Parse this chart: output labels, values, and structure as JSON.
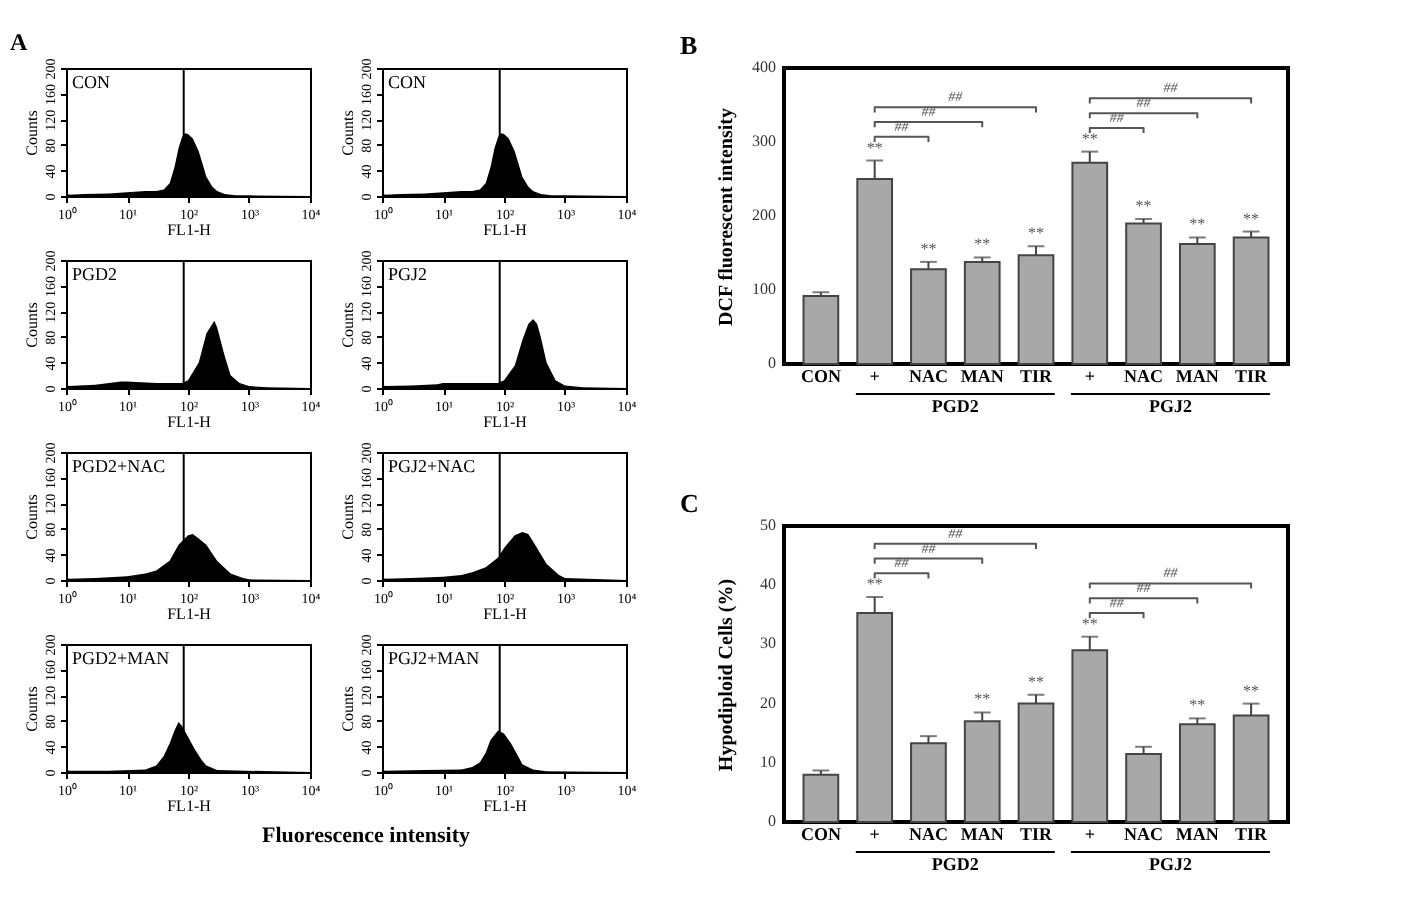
{
  "chart_data": [
    {
      "type": "area",
      "title": "CON",
      "xlabel": "FL1-H",
      "ylabel": "Counts",
      "log": "x",
      "color": "#000000",
      "annotations": [
        "A",
        "Fluorescence intensity"
      ],
      "xlim": [
        1,
        10000
      ],
      "xticks": [
        {
          "value": 1,
          "label": "10⁰"
        },
        {
          "value": 10,
          "label": "10¹"
        },
        {
          "value": 100,
          "label": "10²"
        },
        {
          "value": 1000,
          "label": "10³"
        },
        {
          "value": 10000,
          "label": "10⁴"
        }
      ],
      "ylim": [
        0,
        200
      ],
      "yticks": [
        0,
        40,
        80,
        120,
        160,
        200
      ],
      "ref_lines": [
        {
          "axis": "x",
          "value": 85
        }
      ],
      "x": [
        1,
        1.1,
        2,
        5,
        10,
        20,
        30,
        40,
        50,
        60,
        70,
        80,
        90,
        100,
        120,
        150,
        180,
        200,
        250,
        300,
        400,
        600,
        1000,
        10000
      ],
      "values": [
        15,
        2,
        3,
        4,
        6,
        8,
        8,
        10,
        20,
        45,
        75,
        92,
        98,
        97,
        90,
        70,
        45,
        30,
        15,
        8,
        3,
        1,
        1,
        0
      ]
    },
    {
      "type": "area",
      "title": "CON",
      "xlabel": "FL1-H",
      "ylabel": "Counts",
      "log": "x",
      "color": "#000000",
      "xlim": [
        1,
        10000
      ],
      "xticks": [
        {
          "value": 1,
          "label": "10⁰"
        },
        {
          "value": 10,
          "label": "10¹"
        },
        {
          "value": 100,
          "label": "10²"
        },
        {
          "value": 1000,
          "label": "10³"
        },
        {
          "value": 10000,
          "label": "10⁴"
        }
      ],
      "ylim": [
        0,
        200
      ],
      "yticks": [
        0,
        40,
        80,
        120,
        160,
        200
      ],
      "ref_lines": [
        {
          "axis": "x",
          "value": 85
        }
      ],
      "x": [
        1,
        1.1,
        2,
        5,
        10,
        20,
        30,
        40,
        50,
        60,
        70,
        80,
        90,
        100,
        120,
        150,
        180,
        200,
        250,
        300,
        400,
        600,
        1000,
        10000
      ],
      "values": [
        15,
        2,
        3,
        4,
        6,
        8,
        8,
        10,
        20,
        45,
        75,
        92,
        98,
        97,
        90,
        70,
        45,
        30,
        15,
        8,
        3,
        1,
        1,
        0
      ]
    },
    {
      "type": "area",
      "title": "PGD2",
      "xlabel": "FL1-H",
      "ylabel": "Counts",
      "log": "x",
      "color": "#000000",
      "xlim": [
        1,
        10000
      ],
      "xticks": [
        {
          "value": 1,
          "label": "10⁰"
        },
        {
          "value": 10,
          "label": "10¹"
        },
        {
          "value": 100,
          "label": "10²"
        },
        {
          "value": 1000,
          "label": "10³"
        },
        {
          "value": 10000,
          "label": "10⁴"
        }
      ],
      "ylim": [
        0,
        200
      ],
      "yticks": [
        0,
        40,
        80,
        120,
        160,
        200
      ],
      "ref_lines": [
        {
          "axis": "x",
          "value": 85
        }
      ],
      "x": [
        1,
        1.1,
        3,
        8,
        10,
        30,
        80,
        100,
        150,
        200,
        250,
        270,
        300,
        400,
        500,
        700,
        1000,
        2000,
        10000
      ],
      "values": [
        10,
        3,
        5,
        10,
        10,
        8,
        8,
        12,
        40,
        85,
        100,
        105,
        95,
        50,
        20,
        8,
        3,
        1,
        0
      ]
    },
    {
      "type": "area",
      "title": "PGJ2",
      "xlabel": "FL1-H",
      "ylabel": "Counts",
      "log": "x",
      "color": "#000000",
      "xlim": [
        1,
        10000
      ],
      "xticks": [
        {
          "value": 1,
          "label": "10⁰"
        },
        {
          "value": 10,
          "label": "10¹"
        },
        {
          "value": 100,
          "label": "10²"
        },
        {
          "value": 1000,
          "label": "10³"
        },
        {
          "value": 10000,
          "label": "10⁴"
        }
      ],
      "ylim": [
        0,
        200
      ],
      "yticks": [
        0,
        40,
        80,
        120,
        160,
        200
      ],
      "ref_lines": [
        {
          "axis": "x",
          "value": 85
        }
      ],
      "x": [
        1,
        1.1,
        3,
        8,
        10,
        30,
        80,
        100,
        150,
        200,
        250,
        300,
        350,
        400,
        500,
        700,
        1000,
        2000,
        10000
      ],
      "values": [
        10,
        3,
        4,
        6,
        8,
        8,
        8,
        12,
        35,
        75,
        100,
        108,
        100,
        80,
        40,
        12,
        4,
        1,
        0
      ]
    },
    {
      "type": "area",
      "title": "PGD2+NAC",
      "xlabel": "FL1-H",
      "ylabel": "Counts",
      "log": "x",
      "color": "#000000",
      "xlim": [
        1,
        10000
      ],
      "xticks": [
        {
          "value": 1,
          "label": "10⁰"
        },
        {
          "value": 10,
          "label": "10¹"
        },
        {
          "value": 100,
          "label": "10²"
        },
        {
          "value": 1000,
          "label": "10³"
        },
        {
          "value": 10000,
          "label": "10⁴"
        }
      ],
      "ylim": [
        0,
        200
      ],
      "yticks": [
        0,
        40,
        80,
        120,
        160,
        200
      ],
      "ref_lines": [
        {
          "axis": "x",
          "value": 85
        }
      ],
      "x": [
        1,
        1.1,
        3,
        10,
        20,
        30,
        50,
        70,
        100,
        120,
        150,
        200,
        300,
        500,
        800,
        1000,
        10000
      ],
      "values": [
        10,
        2,
        3,
        6,
        10,
        15,
        30,
        55,
        70,
        72,
        65,
        55,
        30,
        10,
        3,
        1,
        0
      ]
    },
    {
      "type": "area",
      "title": "PGJ2+NAC",
      "xlabel": "FL1-H",
      "ylabel": "Counts",
      "log": "x",
      "color": "#000000",
      "xlim": [
        1,
        10000
      ],
      "xticks": [
        {
          "value": 1,
          "label": "10⁰"
        },
        {
          "value": 10,
          "label": "10¹"
        },
        {
          "value": 100,
          "label": "10²"
        },
        {
          "value": 1000,
          "label": "10³"
        },
        {
          "value": 10000,
          "label": "10⁴"
        }
      ],
      "ylim": [
        0,
        200
      ],
      "yticks": [
        0,
        40,
        80,
        120,
        160,
        200
      ],
      "ref_lines": [
        {
          "axis": "x",
          "value": 85
        }
      ],
      "x": [
        1,
        1.1,
        3,
        10,
        20,
        30,
        50,
        80,
        100,
        150,
        200,
        250,
        300,
        500,
        800,
        1000,
        10000
      ],
      "values": [
        10,
        2,
        3,
        5,
        8,
        12,
        20,
        35,
        50,
        70,
        75,
        72,
        60,
        25,
        8,
        3,
        0
      ]
    },
    {
      "type": "area",
      "title": "PGD2+MAN",
      "xlabel": "FL1-H",
      "ylabel": "Counts",
      "log": "x",
      "color": "#000000",
      "xlim": [
        1,
        10000
      ],
      "xticks": [
        {
          "value": 1,
          "label": "10⁰"
        },
        {
          "value": 10,
          "label": "10¹"
        },
        {
          "value": 100,
          "label": "10²"
        },
        {
          "value": 1000,
          "label": "10³"
        },
        {
          "value": 10000,
          "label": "10⁴"
        }
      ],
      "ylim": [
        0,
        200
      ],
      "yticks": [
        0,
        40,
        80,
        120,
        160,
        200
      ],
      "ref_lines": [
        {
          "axis": "x",
          "value": 85
        }
      ],
      "x": [
        1,
        1.1,
        5,
        20,
        30,
        40,
        50,
        60,
        70,
        80,
        100,
        130,
        170,
        200,
        300,
        10000
      ],
      "values": [
        10,
        2,
        2,
        4,
        10,
        25,
        45,
        65,
        78,
        72,
        55,
        35,
        18,
        10,
        3,
        0
      ]
    },
    {
      "type": "area",
      "title": "PGJ2+MAN",
      "xlabel": "FL1-H",
      "ylabel": "Counts",
      "log": "x",
      "color": "#000000",
      "xlim": [
        1,
        10000
      ],
      "xticks": [
        {
          "value": 1,
          "label": "10⁰"
        },
        {
          "value": 10,
          "label": "10¹"
        },
        {
          "value": 100,
          "label": "10²"
        },
        {
          "value": 1000,
          "label": "10³"
        },
        {
          "value": 10000,
          "label": "10⁴"
        }
      ],
      "ylim": [
        0,
        200
      ],
      "yticks": [
        0,
        40,
        80,
        120,
        160,
        200
      ],
      "ref_lines": [
        {
          "axis": "x",
          "value": 85
        }
      ],
      "x": [
        1,
        1.1,
        5,
        20,
        30,
        40,
        50,
        60,
        80,
        100,
        130,
        170,
        200,
        300,
        500,
        10000
      ],
      "values": [
        10,
        2,
        3,
        4,
        8,
        15,
        30,
        50,
        65,
        60,
        45,
        25,
        12,
        4,
        1,
        0
      ]
    },
    {
      "type": "bar",
      "ylabel": "DCF fluorescent intensity",
      "color": "#a8a8a8",
      "ylim": [
        0,
        400
      ],
      "yticks": [
        0,
        100,
        200,
        300,
        400
      ],
      "categories": [
        "CON",
        "+",
        "NAC",
        "MAN",
        "TIR",
        "+",
        "NAC",
        "MAN",
        "TIR"
      ],
      "values": [
        92,
        250,
        128,
        138,
        147,
        272,
        190,
        162,
        171
      ],
      "errors": [
        5,
        25,
        10,
        6,
        12,
        15,
        6,
        9,
        8
      ],
      "value_labels": [
        null,
        "**",
        "**",
        "**",
        "**",
        "**",
        "**",
        "**",
        "**"
      ],
      "annotations": [
        "B",
        "##",
        "##",
        "##",
        "##",
        "##",
        "##",
        "PGD2",
        "PGJ2"
      ]
    },
    {
      "type": "bar",
      "ylabel": "Hypodiploid Cells (%)",
      "color": "#a8a8a8",
      "ylim": [
        0,
        50
      ],
      "yticks": [
        0,
        10,
        20,
        30,
        40,
        50
      ],
      "categories": [
        "CON",
        "+",
        "NAC",
        "MAN",
        "TIR",
        "+",
        "NAC",
        "MAN",
        "TIR"
      ],
      "values": [
        8,
        35.3,
        13.3,
        17,
        20,
        29,
        11.5,
        16.5,
        18
      ],
      "errors": [
        0.7,
        2.7,
        1.2,
        1.5,
        1.5,
        2.3,
        1.2,
        1,
        2
      ],
      "value_labels": [
        null,
        "**",
        null,
        "**",
        "**",
        "**",
        null,
        "**",
        "**"
      ],
      "annotations": [
        "C",
        "##",
        "##",
        "##",
        "##",
        "##",
        "##",
        "PGD2",
        "PGJ2"
      ]
    }
  ]
}
